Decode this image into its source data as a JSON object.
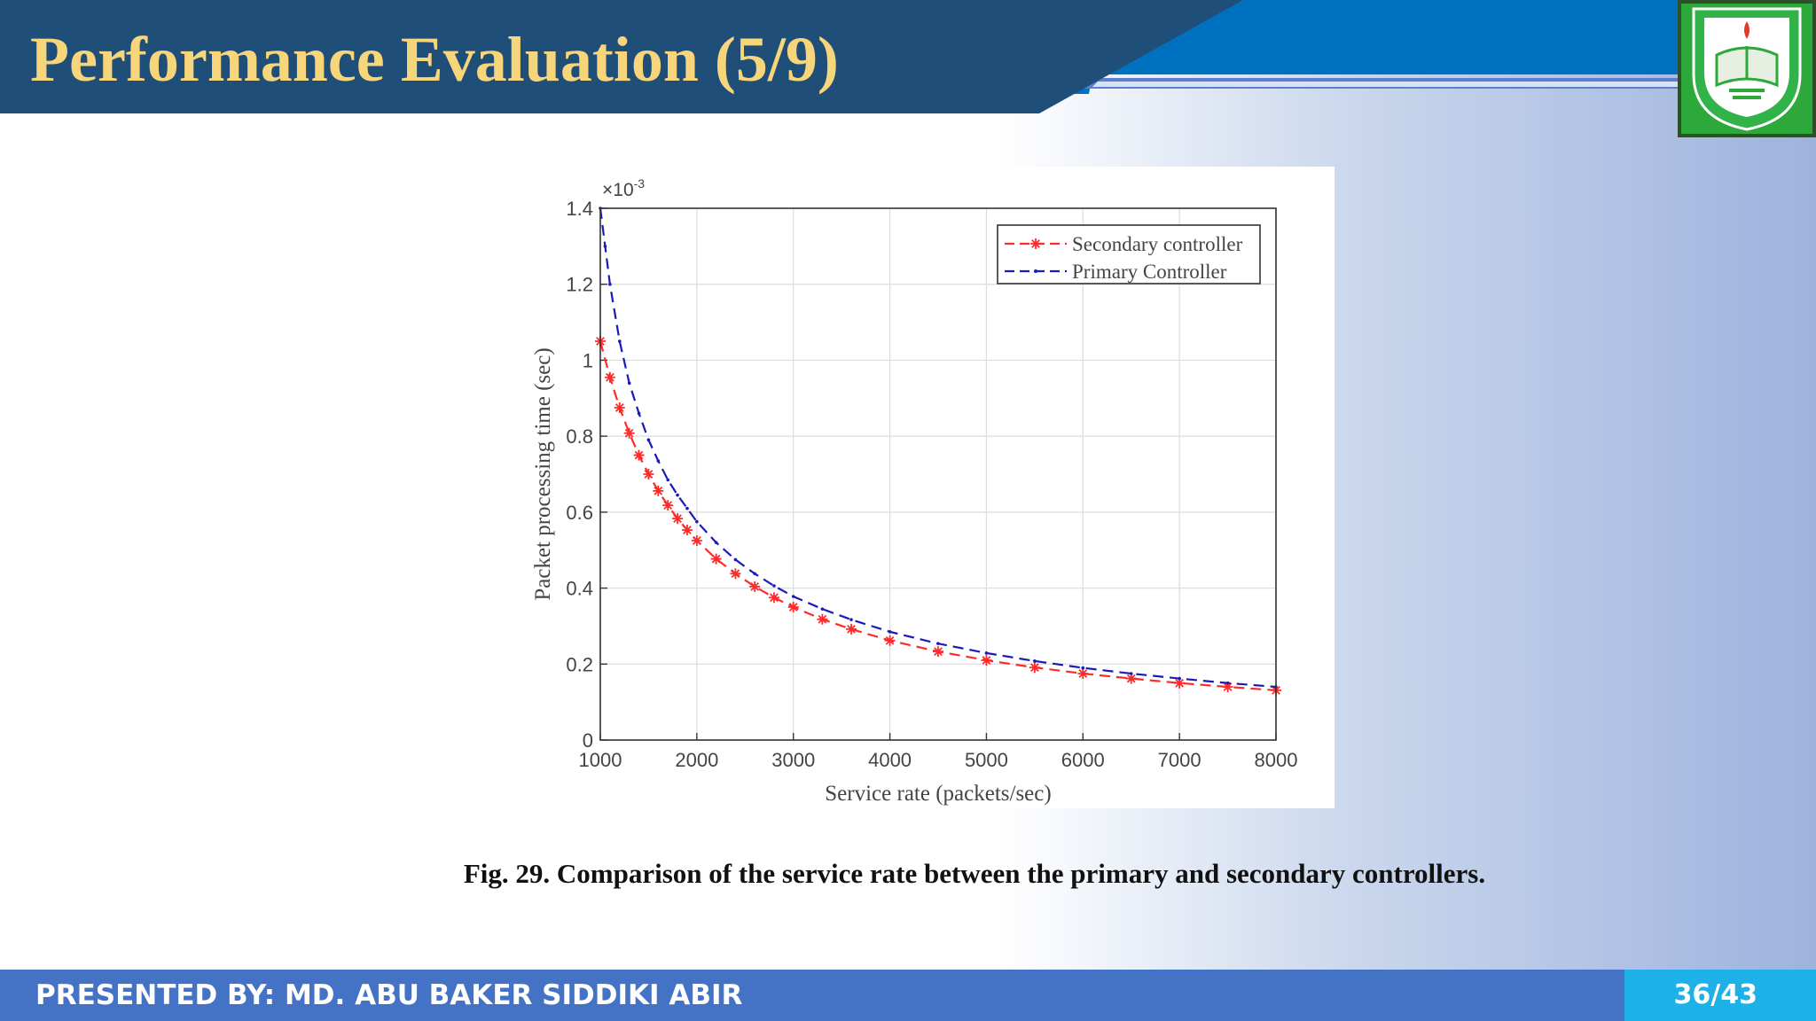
{
  "slide": {
    "title": "Performance Evaluation (5/9)",
    "caption": "Fig. 29. Comparison of the service rate between the primary and secondary controllers.",
    "presenter": "PRESENTED BY: MD. ABU BAKER SIDDIKI ABIR",
    "page": "36/43"
  },
  "logo": {
    "icon": "university-seal-icon"
  },
  "colors": {
    "header_dark": "#1f4e79",
    "header_blue": "#0070c0",
    "title_text": "#f7d57a",
    "footer": "#4472c4",
    "page_box": "#1eb1e8",
    "logo_green": "#2da83a",
    "secondary_series": "#ff2a2a",
    "primary_series": "#1a1ab8"
  },
  "chart_data": {
    "type": "line",
    "xlabel": "Service rate (packets/sec)",
    "ylabel": "Packet processing time (sec)",
    "y_multiplier": "×10",
    "y_multiplier_exp": "-3",
    "xlim": [
      1000,
      8000
    ],
    "ylim": [
      0,
      1.4
    ],
    "xticks": [
      1000,
      2000,
      3000,
      4000,
      5000,
      6000,
      7000,
      8000
    ],
    "yticks": [
      0,
      0.2,
      0.4,
      0.6,
      0.8,
      1,
      1.2,
      1.4
    ],
    "grid": true,
    "legend_position": "top-right",
    "series": [
      {
        "name": "Secondary controller",
        "style": "dashed-star",
        "color": "#ff2a2a",
        "x": [
          1000,
          1100,
          1200,
          1300,
          1400,
          1500,
          1600,
          1700,
          1800,
          1900,
          2000,
          2200,
          2400,
          2600,
          2800,
          3000,
          3300,
          3600,
          4000,
          4500,
          5000,
          5500,
          6000,
          6500,
          7000,
          7500,
          8000
        ],
        "y": [
          1.05,
          0.955,
          0.875,
          0.808,
          0.75,
          0.7,
          0.656,
          0.618,
          0.583,
          0.553,
          0.525,
          0.477,
          0.438,
          0.404,
          0.375,
          0.35,
          0.318,
          0.292,
          0.262,
          0.233,
          0.21,
          0.191,
          0.175,
          0.162,
          0.15,
          0.14,
          0.131
        ]
      },
      {
        "name": "Primary Controller",
        "style": "dashed-dot",
        "color": "#1a1ab8",
        "x": [
          1000,
          1050,
          1100,
          1200,
          1300,
          1400,
          1500,
          1600,
          1700,
          1800,
          1900,
          2000,
          2200,
          2400,
          2600,
          2800,
          3000,
          3300,
          3600,
          4000,
          4500,
          5000,
          5500,
          6000,
          6500,
          7000,
          7500,
          8000
        ],
        "y": [
          1.4,
          1.3,
          1.2,
          1.05,
          0.94,
          0.86,
          0.79,
          0.735,
          0.685,
          0.645,
          0.61,
          0.575,
          0.52,
          0.475,
          0.438,
          0.406,
          0.378,
          0.345,
          0.317,
          0.285,
          0.254,
          0.229,
          0.208,
          0.19,
          0.175,
          0.162,
          0.15,
          0.14
        ]
      }
    ]
  }
}
